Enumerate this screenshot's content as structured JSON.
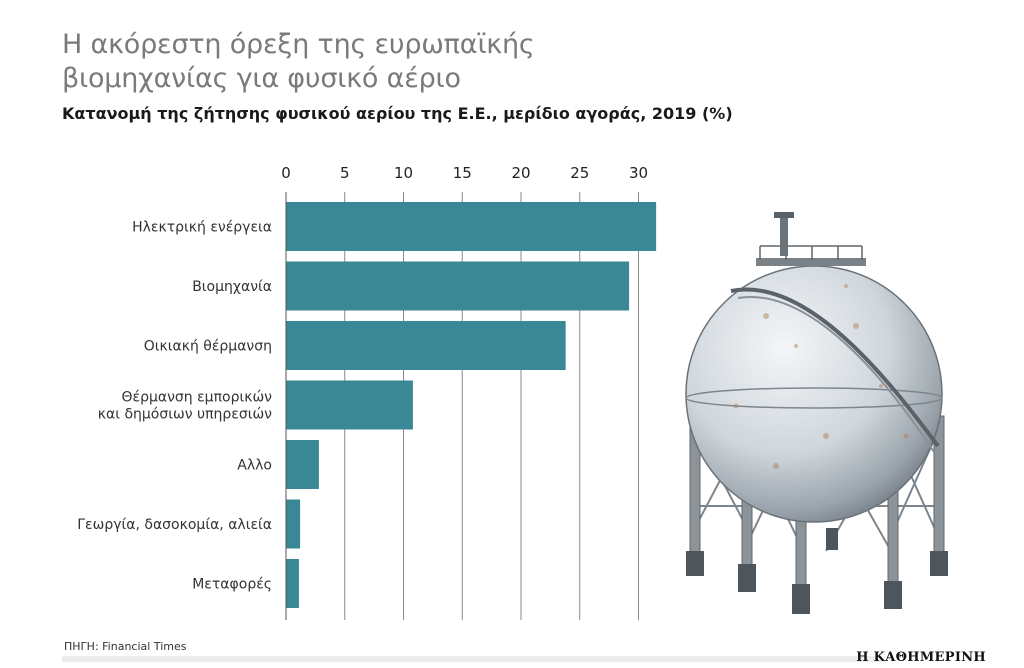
{
  "title": "Η ακόρεστη όρεξη της ευρωπαϊκής βιομηχανίας για φυσικό αέριο",
  "subtitle": "Κατανομή της ζήτησης φυσικού αερίου της Ε.Ε., μερίδιο αγοράς, 2019 (%)",
  "source": "ΠΗΓΗ: Financial Times",
  "logo": "Η ΚΑΘΗΜΕΡΙΝΗ",
  "colors": {
    "bar": "#3a8796",
    "grid": "#8a8a8a",
    "title": "#7a7a7a"
  },
  "chart_data": {
    "type": "bar",
    "orientation": "horizontal",
    "xaxis_position": "top",
    "categories": [
      [
        "Ηλεκτρική ενέργεια"
      ],
      [
        "Βιομηχανία"
      ],
      [
        "Οικιακή θέρμανση"
      ],
      [
        "Θέρμανση εμπορικών",
        "και δημόσιων υπηρεσιών"
      ],
      [
        "Αλλο"
      ],
      [
        "Γεωργία, δασοκομία, αλιεία"
      ],
      [
        "Μεταφορές"
      ]
    ],
    "values": [
      31.5,
      29.2,
      23.8,
      10.8,
      2.8,
      1.2,
      1.1
    ],
    "xlim": [
      0,
      32
    ],
    "xticks": [
      0,
      5,
      10,
      15,
      20,
      25,
      30
    ],
    "grid": true
  }
}
